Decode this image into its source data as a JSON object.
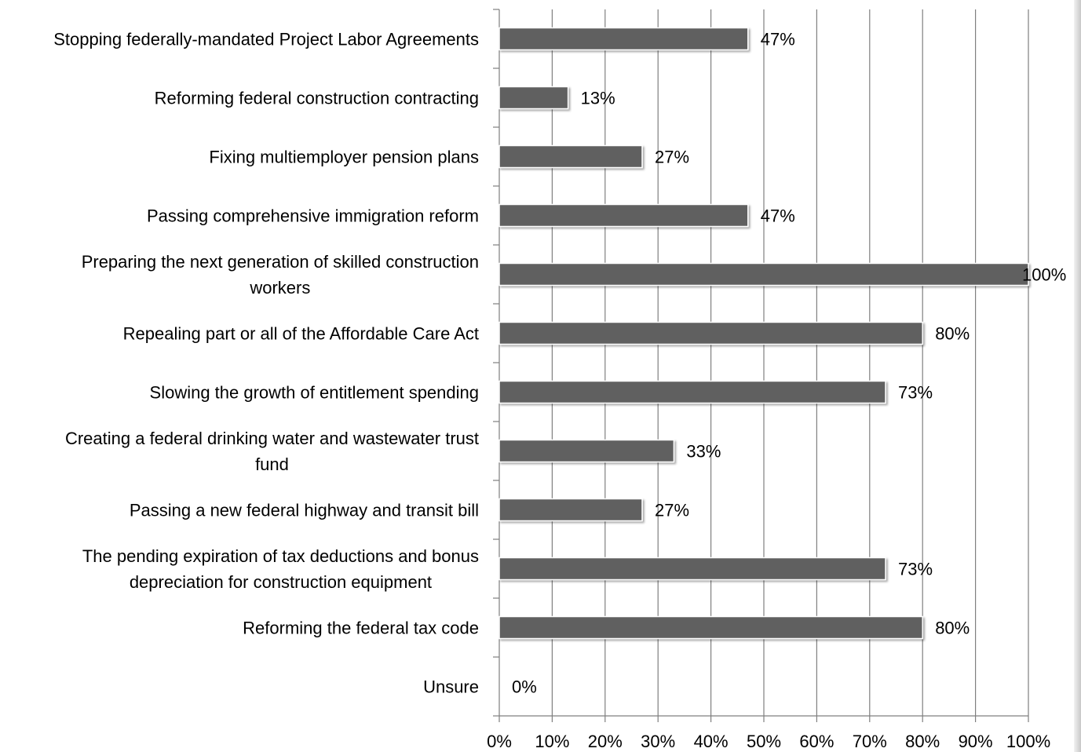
{
  "chart_data": {
    "type": "bar",
    "orientation": "horizontal",
    "categories": [
      [
        "Stopping federally-mandated Project Labor Agreements"
      ],
      [
        "Reforming federal construction contracting"
      ],
      [
        "Fixing multiemployer pension plans"
      ],
      [
        "Passing comprehensive immigration reform"
      ],
      [
        "Preparing the next generation of skilled construction",
        "workers"
      ],
      [
        "Repealing part or all of the Affordable Care Act"
      ],
      [
        "Slowing the growth of entitlement spending"
      ],
      [
        "Creating a federal drinking water and wastewater trust",
        "fund"
      ],
      [
        "Passing a new federal highway and transit bill"
      ],
      [
        "The pending expiration of tax deductions and bonus",
        "depreciation for construction equipment"
      ],
      [
        "Reforming the federal tax code"
      ],
      [
        "Unsure"
      ]
    ],
    "values": [
      47,
      13,
      27,
      47,
      100,
      80,
      73,
      33,
      27,
      73,
      80,
      0
    ],
    "value_labels": [
      "47%",
      "13%",
      "27%",
      "47%",
      "100%",
      "80%",
      "73%",
      "33%",
      "27%",
      "73%",
      "80%",
      "0%"
    ],
    "xlim": [
      0,
      100
    ],
    "xticks": [
      "0%",
      "10%",
      "20%",
      "30%",
      "40%",
      "50%",
      "60%",
      "70%",
      "80%",
      "90%",
      "100%"
    ],
    "grid": true,
    "bar_color": "#606060",
    "grid_color": "#7f7f7f"
  }
}
